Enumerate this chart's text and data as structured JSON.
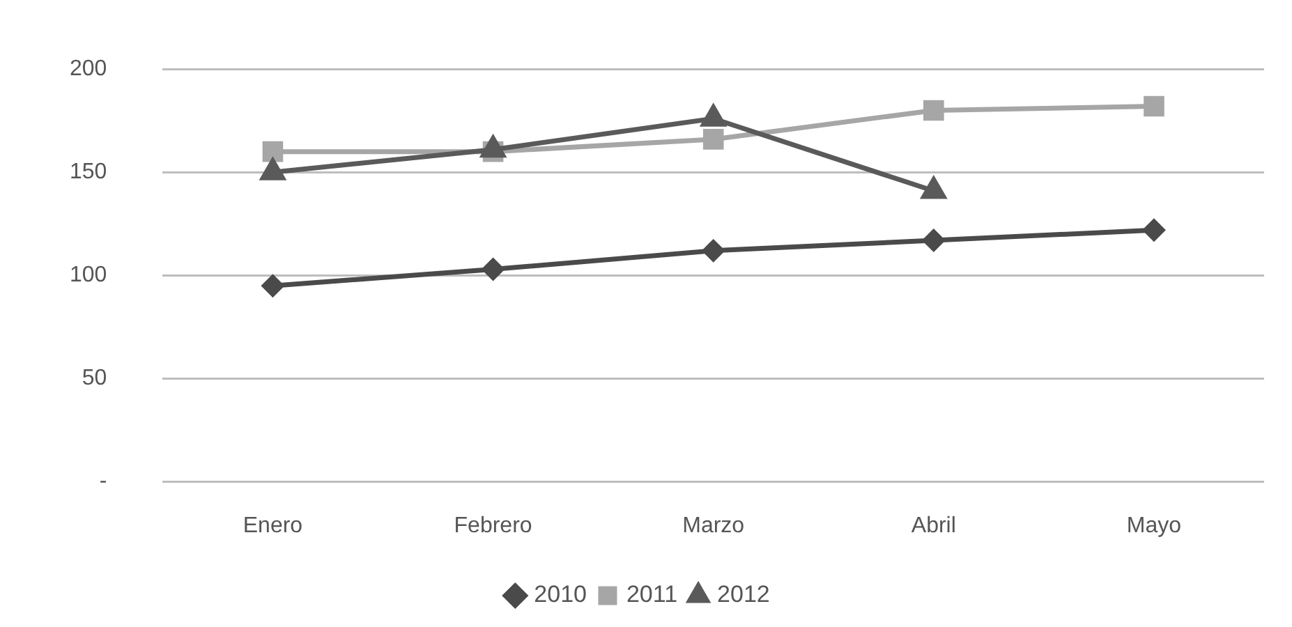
{
  "chart_data": {
    "type": "line",
    "categories": [
      "Enero",
      "Febrero",
      "Marzo",
      "Abril",
      "Mayo"
    ],
    "series": [
      {
        "name": "2010",
        "color": "#4a4a4a",
        "marker": "diamond",
        "values": [
          95,
          103,
          112,
          117,
          122
        ]
      },
      {
        "name": "2011",
        "color": "#a6a6a6",
        "marker": "square",
        "values": [
          160,
          160,
          166,
          180,
          182
        ]
      },
      {
        "name": "2012",
        "color": "#5a5a5a",
        "marker": "triangle",
        "values": [
          150,
          161,
          176,
          141,
          null
        ]
      }
    ],
    "ylim": [
      0,
      200
    ],
    "yticks": [
      {
        "value": 0,
        "label": "-"
      },
      50,
      100,
      150,
      200
    ],
    "grid": "y",
    "legend": "bottom"
  }
}
